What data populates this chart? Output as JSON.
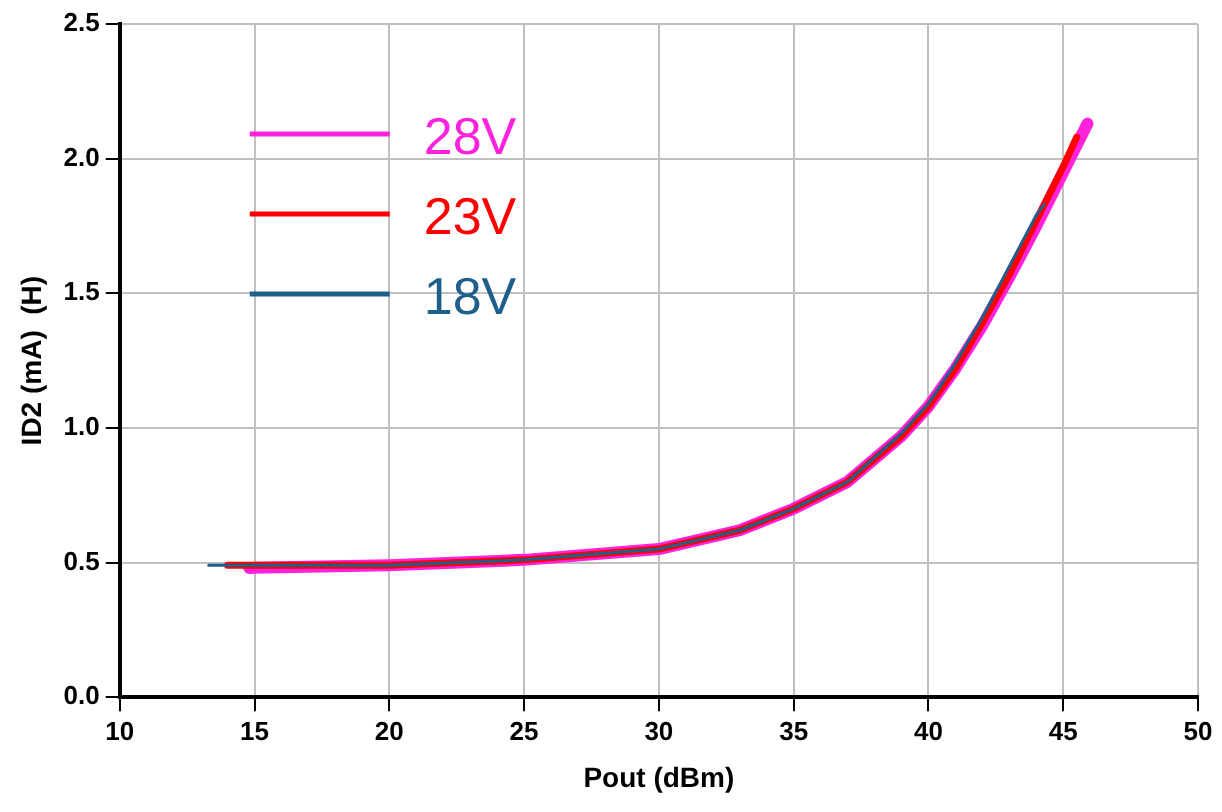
{
  "chart_data": {
    "type": "line",
    "xlabel": "Pout (dBm)",
    "ylabel": "ID2 (mA)  (H)",
    "xlim": [
      10,
      50
    ],
    "xticks": [
      10,
      15,
      20,
      25,
      30,
      35,
      40,
      45,
      50
    ],
    "ylim": [
      0,
      2.5
    ],
    "yticks": [
      {
        "value": 0,
        "label": "0.0"
      },
      {
        "value": 0.5,
        "label": "0.5"
      },
      {
        "value": 1,
        "label": "1.0"
      },
      {
        "value": 1.5,
        "label": "1.5"
      },
      {
        "value": 2,
        "label": "2.0"
      },
      {
        "value": 2.5,
        "label": "2.5"
      }
    ],
    "grid": true,
    "legend": "top left",
    "marker": "none",
    "line_style": "solid",
    "series": [
      {
        "name": "28V",
        "color": "#ff22dd",
        "x": [
          14.8,
          20,
          25,
          30,
          33,
          35,
          37,
          39,
          40,
          41,
          42,
          43,
          44,
          45,
          45.9
        ],
        "values": [
          0.48,
          0.49,
          0.51,
          0.55,
          0.62,
          0.7,
          0.8,
          0.97,
          1.08,
          1.22,
          1.38,
          1.56,
          1.75,
          1.95,
          2.13
        ]
      },
      {
        "name": "23V",
        "color": "#ff0000",
        "x": [
          14,
          20,
          25,
          30,
          33,
          35,
          37,
          39,
          40,
          41,
          42,
          43,
          44,
          45,
          45.5
        ],
        "values": [
          0.49,
          0.49,
          0.51,
          0.55,
          0.62,
          0.7,
          0.8,
          0.97,
          1.08,
          1.22,
          1.39,
          1.57,
          1.77,
          1.97,
          2.08
        ]
      },
      {
        "name": "18V",
        "color": "#1f5f8b",
        "x": [
          13.3,
          20,
          25,
          30,
          33,
          35,
          37,
          39,
          40,
          41,
          42,
          43,
          44,
          44.3
        ],
        "values": [
          0.49,
          0.49,
          0.51,
          0.55,
          0.62,
          0.7,
          0.8,
          0.98,
          1.09,
          1.24,
          1.41,
          1.6,
          1.79,
          1.83
        ]
      }
    ]
  }
}
